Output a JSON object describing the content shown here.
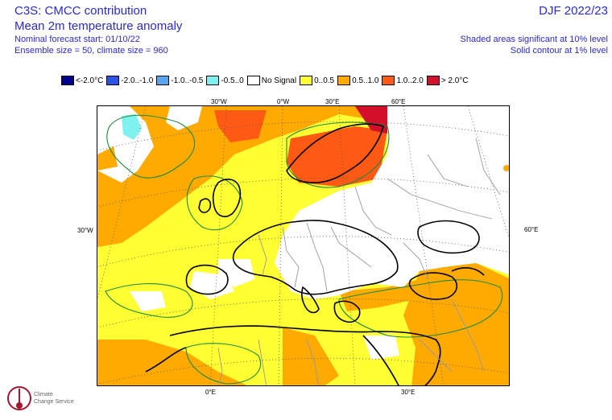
{
  "header": {
    "title": "C3S: CMCC contribution",
    "subtitle": "Mean 2m temperature anomaly",
    "line1": "Nominal forecast start: 01/10/22",
    "line2": "Ensemble size = 50, climate size = 960",
    "period": "DJF 2022/23",
    "note1": "Shaded areas significant at 10% level",
    "note2": "Solid contour at 1% level"
  },
  "legend": [
    {
      "label": "<-2.0°C",
      "color": "#00008f"
    },
    {
      "label": "-2.0..-1.0",
      "color": "#2a52e6"
    },
    {
      "label": "-1.0..-0.5",
      "color": "#5aa5f0"
    },
    {
      "label": "-0.5..0",
      "color": "#7ff2ef"
    },
    {
      "label": "No Signal",
      "color": "#ffffff"
    },
    {
      "label": "0..0.5",
      "color": "#ffff33"
    },
    {
      "label": "0.5..1.0",
      "color": "#ffaa00"
    },
    {
      "label": "1.0..2.0",
      "color": "#ff5a14"
    },
    {
      "label": "> 2.0°C",
      "color": "#d40f2a"
    }
  ],
  "ticks": {
    "top": [
      "30°W",
      "0°W",
      "30°E",
      "60°E"
    ],
    "left": "30°W",
    "right": "60°E",
    "bottom": [
      "0°E",
      "30°E"
    ]
  },
  "logo": {
    "line1": "Climate",
    "line2": "Change Service"
  }
}
